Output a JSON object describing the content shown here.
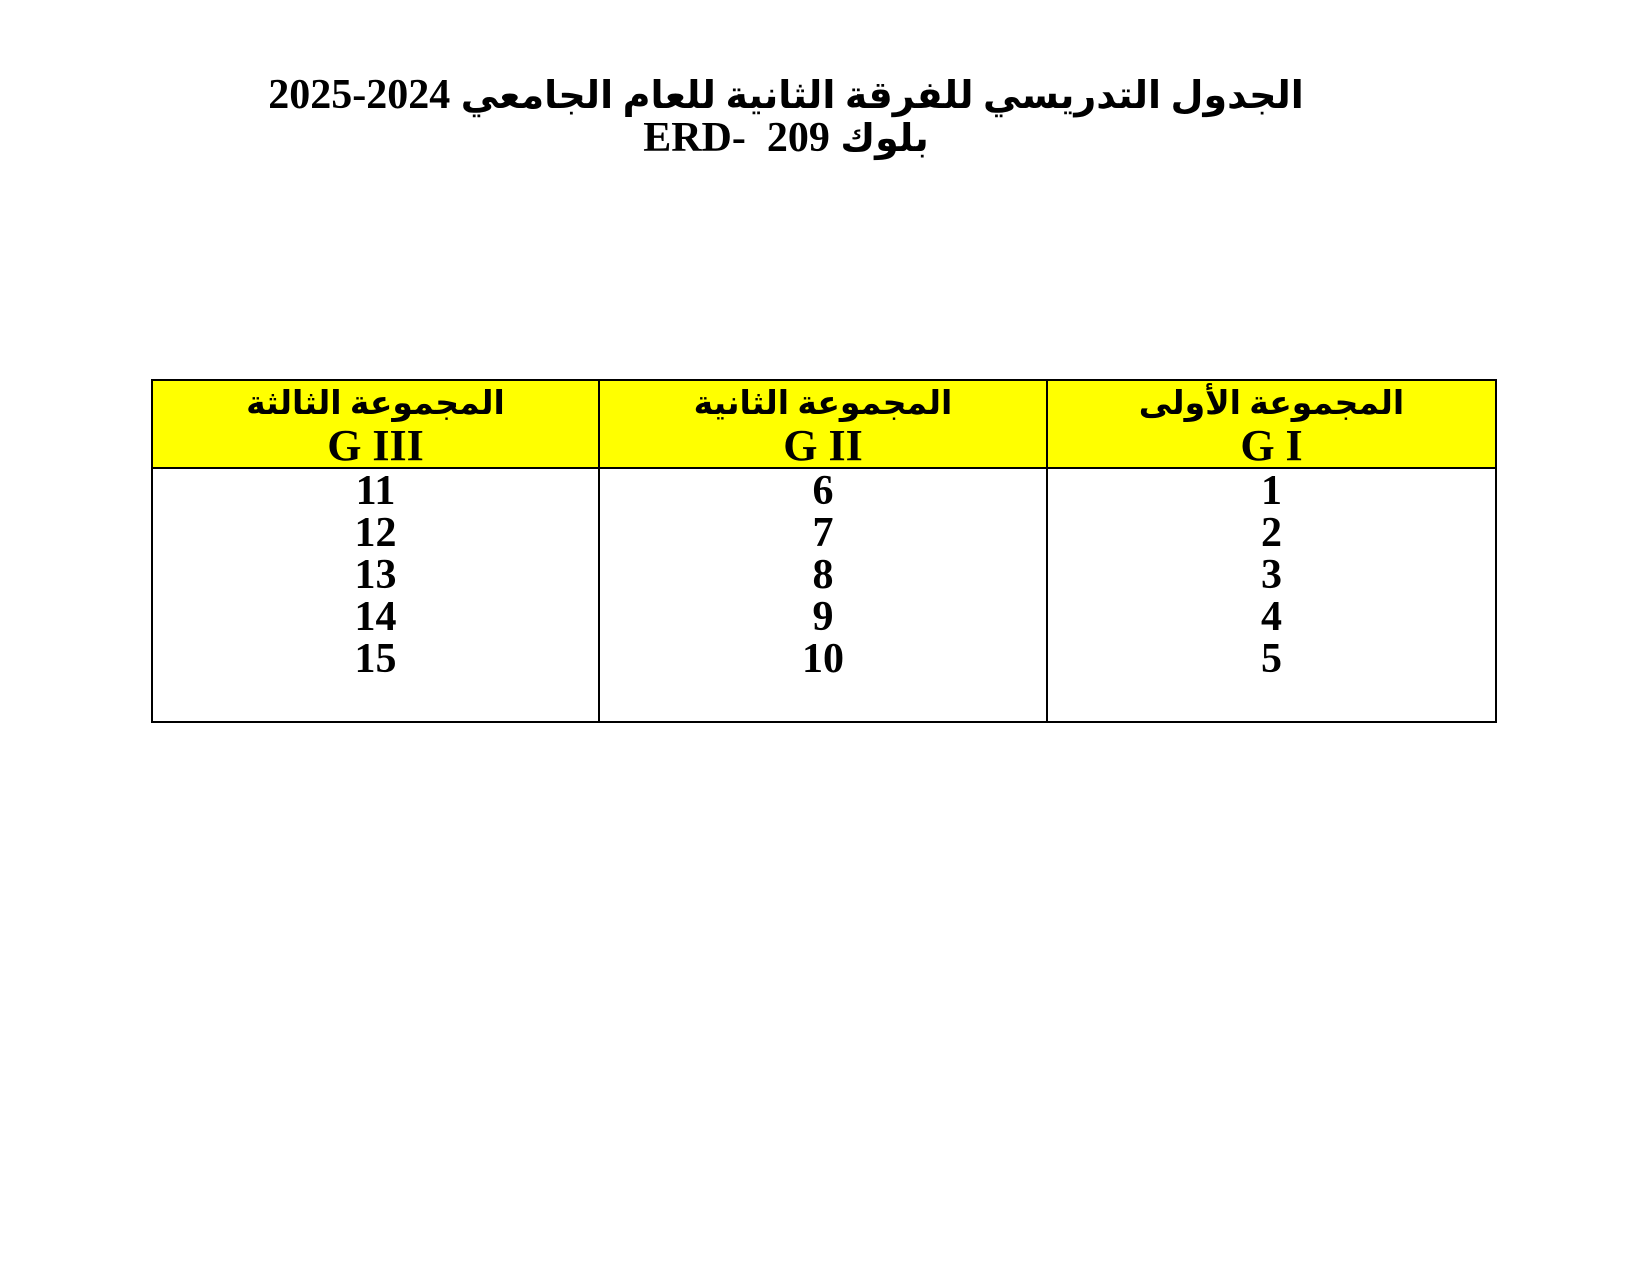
{
  "page": {
    "background": "#ffffff",
    "text_color": "#000000"
  },
  "title": {
    "line1_years_display": "2025-2024",
    "line1_ar": "الجدول التدريسي للفرقة الثانية للعام الجامعي",
    "line2_code": "ERD-  209",
    "line2_ar": "بلوك"
  },
  "table": {
    "header_bg": "#ffff00",
    "border_color": "#000000",
    "columns": [
      {
        "header_ar": "المجموعة الثالثة",
        "header_en": "G III",
        "values": [
          "11",
          "12",
          "13",
          "14",
          "15"
        ]
      },
      {
        "header_ar": "المجموعة الثانية",
        "header_en": "G II",
        "values": [
          "6",
          "7",
          "8",
          "9",
          "10"
        ]
      },
      {
        "header_ar": "المجموعة الأولى",
        "header_en": "G I",
        "values": [
          "1",
          "2",
          "3",
          "4",
          "5"
        ]
      }
    ]
  }
}
